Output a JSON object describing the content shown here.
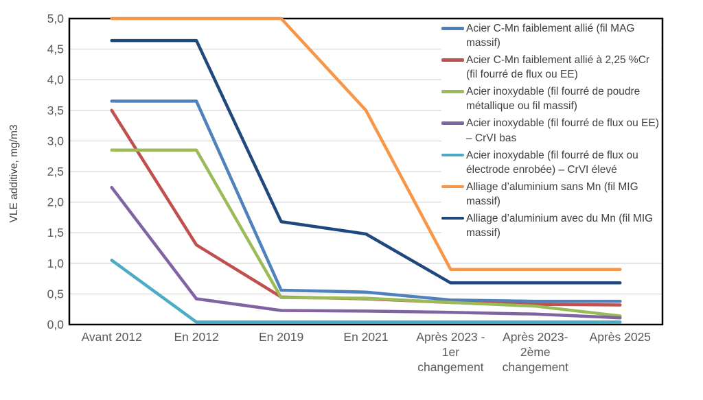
{
  "chart_data": {
    "type": "line",
    "title": "",
    "xlabel": "",
    "ylabel": "VLE additive, mg/m3",
    "ylim": [
      0,
      5
    ],
    "ytick_step": 0.5,
    "y_tick_labels": [
      "0,0",
      "0,5",
      "1,0",
      "1,5",
      "2,0",
      "2,5",
      "3,0",
      "3,5",
      "4,0",
      "4,5",
      "5,0"
    ],
    "categories": [
      "Avant 2012",
      "En 2012",
      "En 2019",
      "En 2021",
      "Après 2023 - 1er changement",
      "Après 2023- 2ème changement",
      "Après 2025"
    ],
    "x_tick_lines": [
      [
        "Avant 2012"
      ],
      [
        "En 2012"
      ],
      [
        "En 2019"
      ],
      [
        "En 2021"
      ],
      [
        "Après 2023 -",
        "1er",
        "changement"
      ],
      [
        "Après 2023-",
        "2ème",
        "changement"
      ],
      [
        "Après 2025"
      ]
    ],
    "grid": "horizontal",
    "legend_position": "inside-top-right",
    "series": [
      {
        "name": "Acier C-Mn faiblement allié (fil MAG massif)",
        "color": "#4F81BD",
        "values": [
          3.65,
          3.65,
          0.56,
          0.53,
          0.4,
          0.38,
          0.38
        ]
      },
      {
        "name": "Acier C-Mn faiblement allié à 2,25 %Cr (fil fourré de flux ou EE)",
        "color": "#C0504D",
        "values": [
          3.5,
          1.3,
          0.45,
          0.42,
          0.36,
          0.33,
          0.32
        ]
      },
      {
        "name": "Acier inoxydable (fil fourré de poudre métallique ou fil massif)",
        "color": "#9BBB59",
        "values": [
          2.85,
          2.85,
          0.44,
          0.43,
          0.36,
          0.3,
          0.14
        ]
      },
      {
        "name": "Acier inoxydable (fil fourré de flux ou EE) – CrVI bas",
        "color": "#8064A2",
        "values": [
          2.24,
          0.42,
          0.23,
          0.22,
          0.2,
          0.17,
          0.11
        ]
      },
      {
        "name": "Acier inoxydable (fil fourré de flux ou électrode enrobée) – CrVI élevé",
        "color": "#4BACC6",
        "values": [
          1.05,
          0.04,
          0.04,
          0.04,
          0.04,
          0.04,
          0.04
        ]
      },
      {
        "name": "Alliage d’aluminium sans Mn (fil MIG massif)",
        "color": "#F79646",
        "values": [
          5.0,
          5.0,
          5.0,
          3.5,
          0.9,
          0.9,
          0.9
        ]
      },
      {
        "name": "Alliage d’aluminium avec du Mn (fil MIG massif)",
        "color": "#1F497D",
        "values": [
          4.64,
          4.64,
          1.68,
          1.48,
          0.68,
          0.68,
          0.68
        ]
      }
    ]
  },
  "colors": {
    "background": "#FFFFFF",
    "gridline": "#D9D9D9",
    "plot_border": "#000000",
    "tick_text": "#595959",
    "legend_text": "#3F3F3F"
  }
}
